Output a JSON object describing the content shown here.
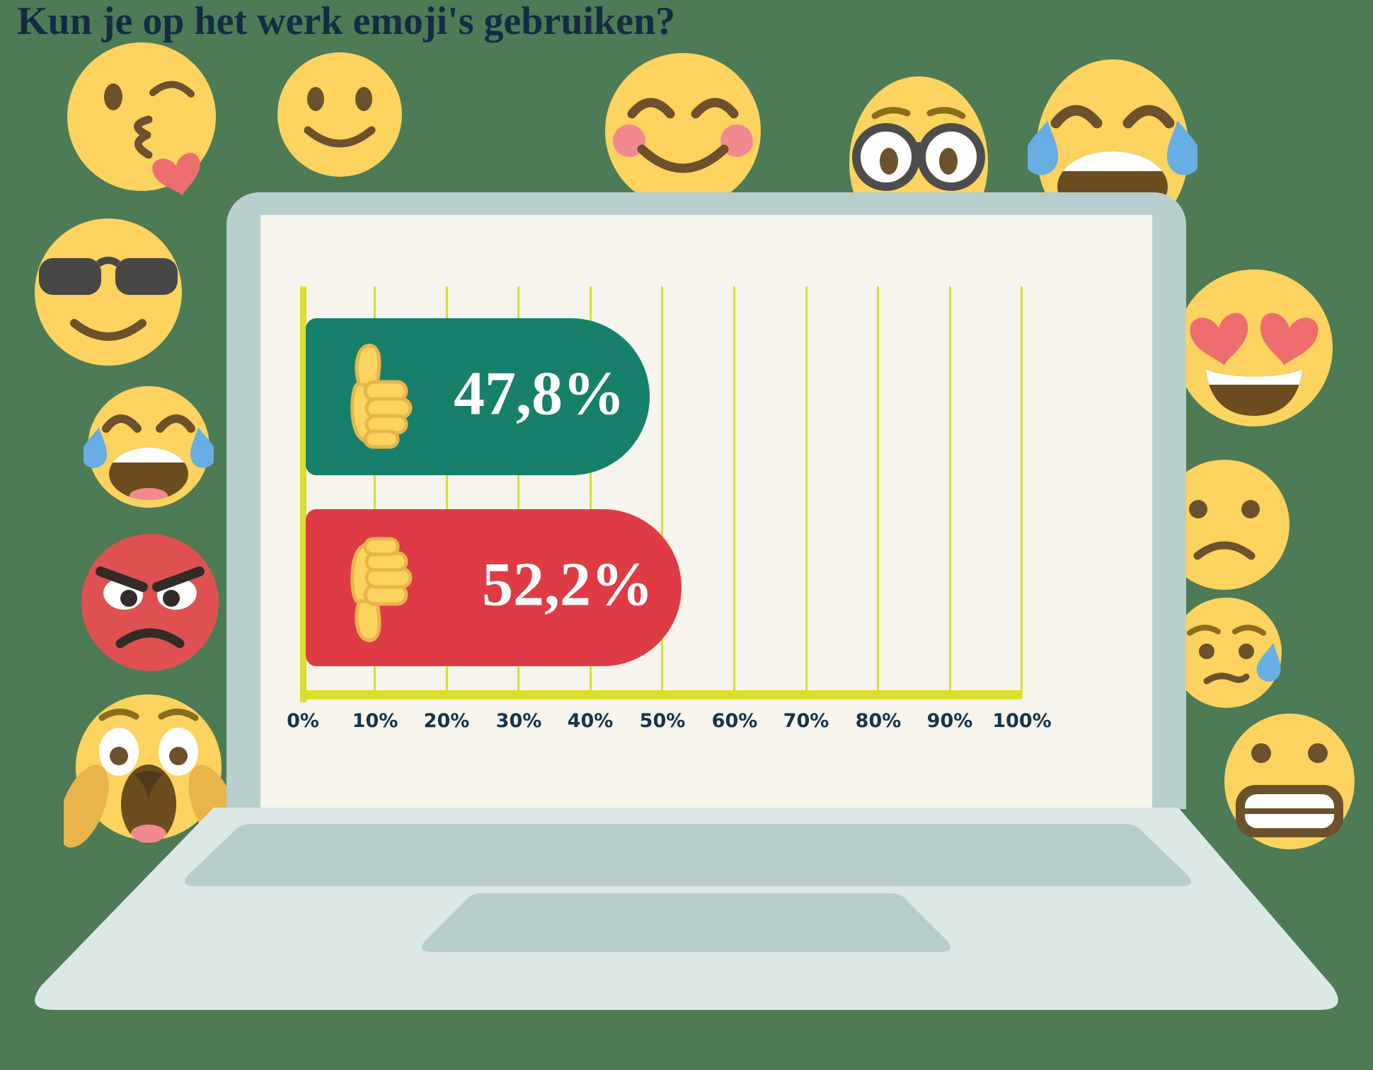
{
  "title": "Kun je op het werk emoji's gebruiken?",
  "chart_data": {
    "type": "bar",
    "orientation": "horizontal",
    "title": "Kun je op het werk emoji's gebruiken?",
    "categories": [
      "thumbs-up",
      "thumbs-down"
    ],
    "bars": [
      {
        "name": "thumbs-up",
        "label": "47,8%",
        "value": 47.8,
        "color": "#17806B"
      },
      {
        "name": "thumbs-down",
        "label": "52,2%",
        "value": 52.2,
        "color": "#DE3B45"
      }
    ],
    "ticks": [
      "0%",
      "10%",
      "20%",
      "30%",
      "40%",
      "50%",
      "60%",
      "70%",
      "80%",
      "90%",
      "100%"
    ],
    "xlim": [
      0,
      100
    ],
    "grid": "vertical",
    "grid_color": "#D8E02B",
    "legend": "none"
  },
  "colors": {
    "background": "#4D7B55",
    "title_text": "#132C44",
    "screen": "#F6F4EC",
    "laptop_frame": "#B9CFCD",
    "laptop_base": "#DCE8E6",
    "laptop_keys": "#B7CECC",
    "axis_lime": "#D8E02B",
    "bar_positive": "#17806B",
    "bar_negative": "#DE3B45",
    "tick_text": "#16344C",
    "emoji_yellow": "#FBD35E"
  },
  "emojis": [
    {
      "name": "face-blowing-a-kiss"
    },
    {
      "name": "slightly-smiling-face"
    },
    {
      "name": "smiling-face-with-smiling-eyes"
    },
    {
      "name": "nerd-face-with-glasses"
    },
    {
      "name": "face-with-tears-of-joy-top-right"
    },
    {
      "name": "smiling-face-with-sunglasses"
    },
    {
      "name": "smiling-face-with-heart-eyes"
    },
    {
      "name": "face-with-tears-of-joy-left"
    },
    {
      "name": "frowning-face"
    },
    {
      "name": "angry-face"
    },
    {
      "name": "sad-face-with-sweat"
    },
    {
      "name": "screaming-face"
    },
    {
      "name": "grimacing-face"
    }
  ]
}
